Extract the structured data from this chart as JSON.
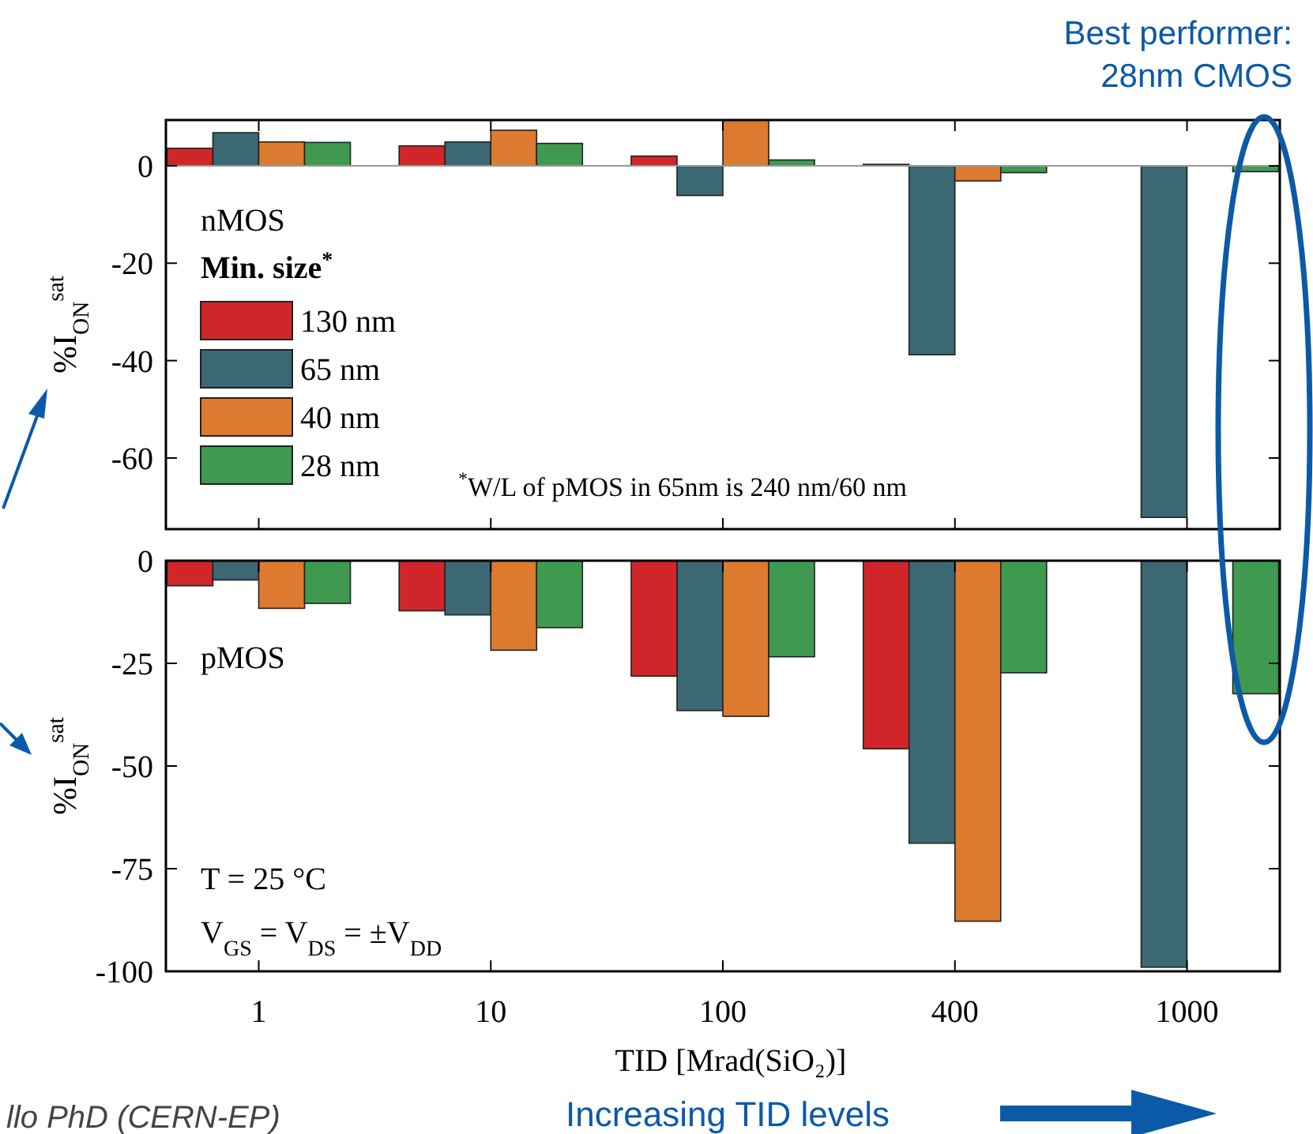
{
  "chart_data": [
    {
      "type": "bar",
      "categories": [
        "1",
        "10",
        "100",
        "400",
        "1000"
      ],
      "ylabel": "%I$_{ON}$$^{sat}$",
      "ylim": [
        -74.6,
        9.4
      ],
      "yticks": [
        0,
        -20,
        -40,
        -60
      ],
      "tick_labels": "y",
      "legend": "left",
      "legend_title": "Min. size$^{*}$",
      "series": [
        {
          "name": "130 nm",
          "color": "#d0262a",
          "values": [
            3.6,
            4.1,
            2.0,
            0.3,
            null
          ]
        },
        {
          "name": "65 nm",
          "color": "#3b6873",
          "values": [
            6.8,
            4.9,
            -6.1,
            -38.8,
            -72.2
          ]
        },
        {
          "name": "40 nm",
          "color": "#dc7a30",
          "values": [
            4.9,
            7.3,
            9.4,
            -3.1,
            null
          ]
        },
        {
          "name": "28 nm",
          "color": "#3f9a50",
          "values": [
            4.8,
            4.6,
            1.2,
            -1.4,
            -1.2
          ]
        }
      ],
      "annotations": [
        "nMOS",
        "$^{*}$W/L of pMOS in 65nm is 240 nm/60 nm",
        "Best performer:\n28nm CMOS"
      ]
    },
    {
      "type": "bar",
      "categories": [
        "1",
        "10",
        "100",
        "400",
        "1000"
      ],
      "ylabel": "%I$_{ON}$$^{sat}$",
      "xlabel": "TID [Mrad(SiO₂)]",
      "ylim": [
        -100,
        0
      ],
      "yticks": [
        0,
        -25,
        -50,
        -75,
        -100
      ],
      "series": [
        {
          "color": "#d0262a",
          "values": [
            -6.1,
            -12.2,
            -28.1,
            -45.8,
            null
          ]
        },
        {
          "color": "#3b6873",
          "values": [
            -4.7,
            -13.2,
            -36.5,
            -68.8,
            -99.0
          ]
        },
        {
          "color": "#dc7a30",
          "values": [
            -11.6,
            -21.8,
            -37.9,
            -87.8,
            null
          ]
        },
        {
          "color": "#3f9a50",
          "values": [
            -10.4,
            -16.3,
            -23.4,
            -27.3,
            -32.4
          ]
        }
      ],
      "annotations": [
        "pMOS",
        "T = 25 °C",
        "V$_{GS}$ = V$_{DS}$ = ±V$_{DD}$",
        "Increasing TID levels",
        "llo PhD (CERN-EP)"
      ]
    }
  ]
}
